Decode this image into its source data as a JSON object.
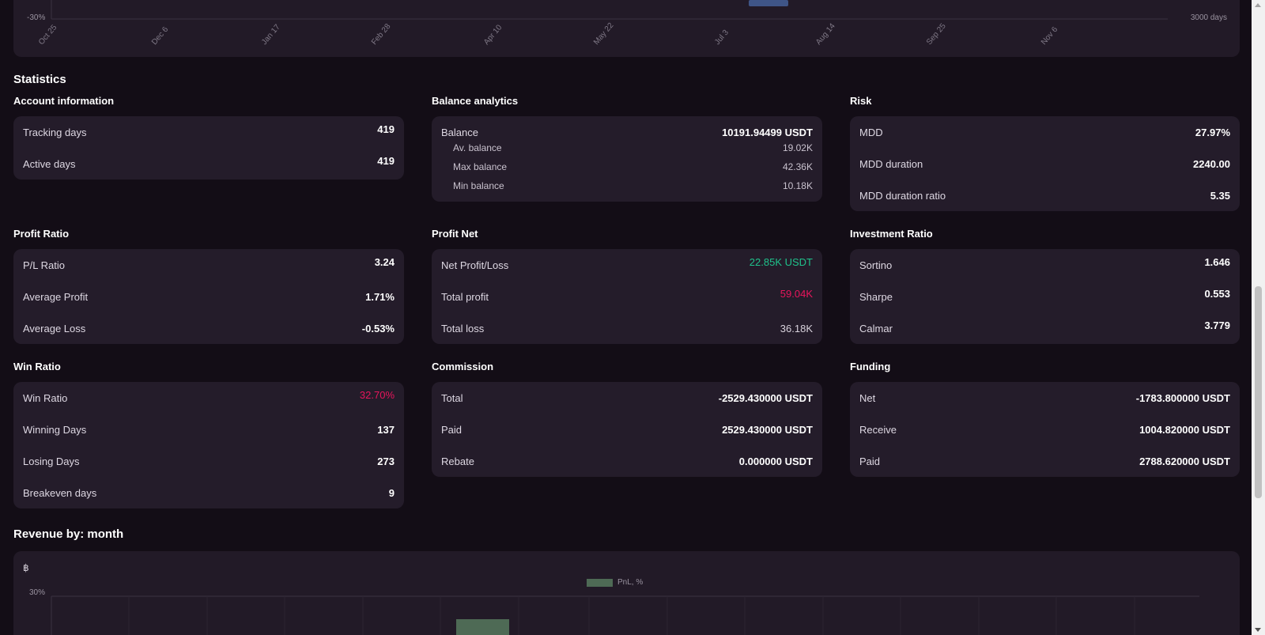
{
  "top_chart": {
    "y_min_label": "-30%",
    "right_label": "3000 days",
    "x_ticks": [
      "Oct 25",
      "Dec 6",
      "Jan 17",
      "Feb 28",
      "Apr 10",
      "May 22",
      "Jul 3",
      "Aug 14",
      "Sep 25",
      "Nov 6"
    ]
  },
  "statistics": {
    "title": "Statistics",
    "account_information": {
      "title": "Account information",
      "rows": [
        {
          "label": "Tracking days",
          "value": "419"
        },
        {
          "label": "Active days",
          "value": "419"
        }
      ]
    },
    "balance_analytics": {
      "title": "Balance analytics",
      "balance_label": "Balance",
      "balance_value": "10191.94499 USDT",
      "sub_rows": [
        {
          "label": "Av. balance",
          "value": "19.02K"
        },
        {
          "label": "Max balance",
          "value": "42.36K"
        },
        {
          "label": "Min balance",
          "value": "10.18K"
        }
      ]
    },
    "risk": {
      "title": "Risk",
      "rows": [
        {
          "label": "MDD",
          "value": "27.97%"
        },
        {
          "label": "MDD duration",
          "value": "2240.00"
        },
        {
          "label": "MDD duration ratio",
          "value": "5.35"
        }
      ]
    },
    "profit_ratio": {
      "title": "Profit Ratio",
      "rows": [
        {
          "label": "P/L Ratio",
          "value": "3.24"
        },
        {
          "label": "Average Profit",
          "value": "1.71%"
        },
        {
          "label": "Average Loss",
          "value": "-0.53%"
        }
      ]
    },
    "profit_net": {
      "title": "Profit Net",
      "rows": [
        {
          "label": "Net Profit/Loss",
          "value": "22.85K USDT"
        },
        {
          "label": "Total profit",
          "value": "59.04K"
        },
        {
          "label": "Total loss",
          "value": "36.18K"
        }
      ]
    },
    "investment_ratio": {
      "title": "Investment Ratio",
      "rows": [
        {
          "label": "Sortino",
          "value": "1.646"
        },
        {
          "label": "Sharpe",
          "value": "0.553"
        },
        {
          "label": "Calmar",
          "value": "3.779"
        }
      ]
    },
    "win_ratio": {
      "title": "Win Ratio",
      "rows": [
        {
          "label": "Win Ratio",
          "value": "32.70%"
        },
        {
          "label": "Winning Days",
          "value": "137"
        },
        {
          "label": "Losing Days",
          "value": "273"
        },
        {
          "label": "Breakeven days",
          "value": "9"
        }
      ]
    },
    "commission": {
      "title": "Commission",
      "rows": [
        {
          "label": "Total",
          "value": "-2529.430000 USDT"
        },
        {
          "label": "Paid",
          "value": "2529.430000 USDT"
        },
        {
          "label": "Rebate",
          "value": "0.000000 USDT"
        }
      ]
    },
    "funding": {
      "title": "Funding",
      "rows": [
        {
          "label": "Net",
          "value": "-1783.800000 USDT"
        },
        {
          "label": "Receive",
          "value": "1004.820000 USDT"
        },
        {
          "label": "Paid",
          "value": "2788.620000 USDT"
        }
      ]
    }
  },
  "revenue": {
    "title": "Revenue by: month",
    "currency_symbol": "฿",
    "legend": "PnL, %",
    "y_top_label": "30%"
  },
  "colors": {
    "positive": "#1fc28b",
    "negative": "#e8155c",
    "card_bg": "#241c2a",
    "page_bg": "#130d16"
  }
}
